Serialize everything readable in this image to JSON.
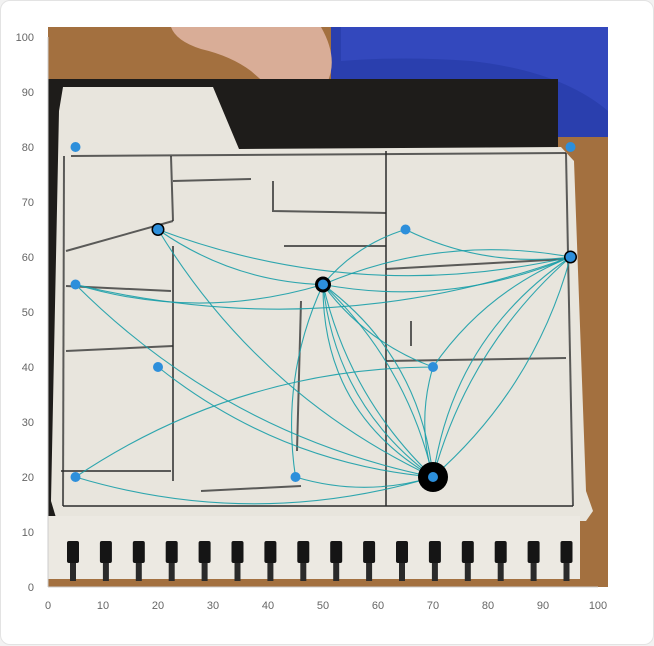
{
  "chart_data": {
    "type": "scatter",
    "title": "",
    "xlabel": "",
    "ylabel": "",
    "xlim": [
      0,
      100
    ],
    "ylim": [
      0,
      100
    ],
    "xticks": [
      0,
      10,
      20,
      30,
      40,
      50,
      60,
      70,
      80,
      90,
      100
    ],
    "yticks": [
      0,
      10,
      20,
      30,
      40,
      50,
      60,
      70,
      80,
      90,
      100
    ],
    "xtick_labels": [
      "0",
      "10",
      "20",
      "30",
      "40",
      "50",
      "60",
      "70",
      "80",
      "90",
      "100"
    ],
    "ytick_labels": [
      "0",
      "10",
      "20",
      "30",
      "40",
      "50",
      "60",
      "70",
      "80",
      "90",
      "100"
    ],
    "grid": false,
    "legend": "none",
    "background": "photo of a hand-drawn floor plan sketch on a notepad held by a hand",
    "colors": {
      "point": "#2d8fdb",
      "edge": "#1a9fa8",
      "outline": "#000000"
    },
    "points": [
      {
        "x": 5,
        "y": 80,
        "emphasis": 0
      },
      {
        "x": 95,
        "y": 80,
        "emphasis": 0
      },
      {
        "x": 20,
        "y": 65,
        "emphasis": 1
      },
      {
        "x": 65,
        "y": 65,
        "emphasis": 0
      },
      {
        "x": 5,
        "y": 55,
        "emphasis": 0
      },
      {
        "x": 50,
        "y": 55,
        "emphasis": 2
      },
      {
        "x": 95,
        "y": 60,
        "emphasis": 1
      },
      {
        "x": 20,
        "y": 40,
        "emphasis": 0
      },
      {
        "x": 70,
        "y": 40,
        "emphasis": 0
      },
      {
        "x": 5,
        "y": 20,
        "emphasis": 0
      },
      {
        "x": 45,
        "y": 20,
        "emphasis": 0
      },
      {
        "x": 70,
        "y": 20,
        "emphasis": 3
      }
    ],
    "edges": [
      {
        "from": [
          20,
          65
        ],
        "to": [
          50,
          55
        ]
      },
      {
        "from": [
          20,
          65
        ],
        "to": [
          95,
          60
        ]
      },
      {
        "from": [
          20,
          65
        ],
        "to": [
          70,
          20
        ]
      },
      {
        "from": [
          5,
          55
        ],
        "to": [
          50,
          55
        ]
      },
      {
        "from": [
          5,
          55
        ],
        "to": [
          95,
          60
        ]
      },
      {
        "from": [
          5,
          55
        ],
        "to": [
          70,
          20
        ]
      },
      {
        "from": [
          65,
          65
        ],
        "to": [
          50,
          55
        ]
      },
      {
        "from": [
          65,
          65
        ],
        "to": [
          95,
          60
        ]
      },
      {
        "from": [
          50,
          55
        ],
        "to": [
          95,
          60
        ]
      },
      {
        "from": [
          50,
          55
        ],
        "to": [
          95,
          60
        ]
      },
      {
        "from": [
          50,
          55
        ],
        "to": [
          70,
          40
        ]
      },
      {
        "from": [
          50,
          55
        ],
        "to": [
          70,
          20
        ]
      },
      {
        "from": [
          50,
          55
        ],
        "to": [
          70,
          20
        ]
      },
      {
        "from": [
          50,
          55
        ],
        "to": [
          70,
          20
        ]
      },
      {
        "from": [
          50,
          55
        ],
        "to": [
          70,
          20
        ]
      },
      {
        "from": [
          50,
          55
        ],
        "to": [
          70,
          20
        ]
      },
      {
        "from": [
          50,
          55
        ],
        "to": [
          45,
          20
        ]
      },
      {
        "from": [
          95,
          60
        ],
        "to": [
          70,
          40
        ]
      },
      {
        "from": [
          95,
          60
        ],
        "to": [
          70,
          20
        ]
      },
      {
        "from": [
          95,
          60
        ],
        "to": [
          70,
          20
        ]
      },
      {
        "from": [
          95,
          60
        ],
        "to": [
          70,
          20
        ]
      },
      {
        "from": [
          70,
          40
        ],
        "to": [
          5,
          20
        ]
      },
      {
        "from": [
          70,
          40
        ],
        "to": [
          70,
          20
        ]
      },
      {
        "from": [
          5,
          20
        ],
        "to": [
          70,
          20
        ]
      },
      {
        "from": [
          45,
          20
        ],
        "to": [
          70,
          20
        ]
      },
      {
        "from": [
          20,
          40
        ],
        "to": [
          70,
          20
        ]
      }
    ]
  }
}
